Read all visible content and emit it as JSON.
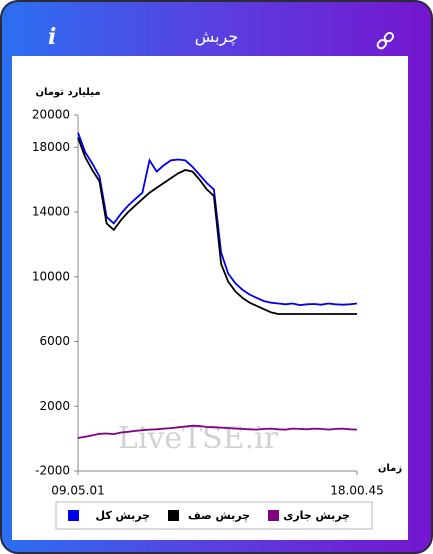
{
  "header": {
    "title": "چربش"
  },
  "chart_data": {
    "type": "line",
    "y_label": "میلیارد تومان",
    "x_label": "زمان",
    "watermark": "LiveTSE.ir",
    "categories": [
      "09.05.01",
      null,
      null,
      null,
      null,
      null,
      null,
      null,
      null,
      null,
      null,
      null,
      null,
      null,
      null,
      null,
      null,
      null,
      null,
      null,
      null,
      null,
      null,
      null,
      null,
      null,
      null,
      null,
      null,
      null,
      null,
      null,
      null,
      null,
      null,
      null,
      null,
      null,
      null,
      "18.00.45"
    ],
    "series": [
      {
        "name": "چربش کل",
        "color": "#0000ee",
        "values": [
          18900,
          17700,
          17000,
          16200,
          13700,
          13300,
          13900,
          14400,
          14800,
          15200,
          17200,
          16500,
          16900,
          17200,
          17250,
          17200,
          16800,
          16300,
          15800,
          15400,
          11500,
          10200,
          9600,
          9200,
          8900,
          8700,
          8500,
          8400,
          8350,
          8300,
          8350,
          8250,
          8300,
          8320,
          8280,
          8350,
          8300,
          8280,
          8300,
          8350
        ]
      },
      {
        "name": "چربش صف",
        "color": "#000000",
        "values": [
          18600,
          17400,
          16600,
          15900,
          13300,
          12900,
          13500,
          14000,
          14400,
          14800,
          15200,
          15500,
          15800,
          16100,
          16400,
          16600,
          16500,
          16000,
          15400,
          15000,
          10800,
          9700,
          9100,
          8700,
          8400,
          8200,
          8000,
          7800,
          7700,
          7700,
          7700,
          7700,
          7700,
          7700,
          7700,
          7700,
          7700,
          7700,
          7700,
          7700
        ]
      },
      {
        "name": "چربش جاری",
        "color": "#800080",
        "values": [
          40,
          120,
          200,
          300,
          320,
          280,
          380,
          420,
          480,
          520,
          560,
          580,
          620,
          650,
          700,
          750,
          800,
          780,
          720,
          700,
          680,
          650,
          620,
          600,
          580,
          560,
          600,
          620,
          580,
          560,
          620,
          600,
          580,
          620,
          600,
          560,
          600,
          620,
          580,
          560
        ]
      }
    ],
    "ylim": [
      -2000,
      20000
    ],
    "yticks": [
      20000,
      18000,
      14000,
      10000,
      6000,
      2000,
      -2000
    ],
    "grid": false,
    "legend": "bottom"
  }
}
